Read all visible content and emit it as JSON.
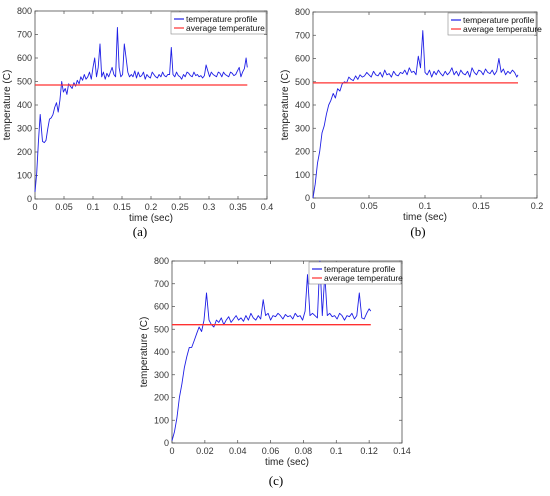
{
  "panel_labels": [
    "(a)",
    "(b)",
    "(c)"
  ],
  "colors": {
    "profile": "#1f1fe6",
    "average": "#ff3030",
    "axis": "#4d4d4d",
    "grid_bg": "#ffffff"
  },
  "chart_data": [
    {
      "type": "line",
      "panel": "(a)",
      "xlabel": "time (sec)",
      "ylabel": "temperature (C)",
      "xlim": [
        0,
        0.4
      ],
      "ylim": [
        0,
        800
      ],
      "xticks": [
        0,
        0.05,
        0.1,
        0.15,
        0.2,
        0.25,
        0.3,
        0.35,
        0.4
      ],
      "xtick_labels": [
        "0",
        "0.05",
        "0.1",
        "0.15",
        "0.2",
        "0.25",
        "0.3",
        "0.35",
        "0.4"
      ],
      "yticks": [
        0,
        100,
        200,
        300,
        400,
        500,
        600,
        700,
        800
      ],
      "ytick_labels": [
        "0",
        "100",
        "200",
        "300",
        "400",
        "500",
        "600",
        "700",
        "800"
      ],
      "legend_position": "top-right",
      "series": [
        {
          "name": "temperature profile",
          "kind": "line",
          "x": [
            0,
            0.003,
            0.006,
            0.009,
            0.011,
            0.013,
            0.016,
            0.019,
            0.022,
            0.025,
            0.028,
            0.031,
            0.034,
            0.037,
            0.04,
            0.043,
            0.046,
            0.049,
            0.052,
            0.055,
            0.058,
            0.061,
            0.064,
            0.067,
            0.07,
            0.073,
            0.076,
            0.079,
            0.082,
            0.085,
            0.088,
            0.091,
            0.094,
            0.097,
            0.1,
            0.103,
            0.106,
            0.109,
            0.112,
            0.115,
            0.118,
            0.121,
            0.124,
            0.127,
            0.13,
            0.133,
            0.136,
            0.139,
            0.142,
            0.145,
            0.148,
            0.151,
            0.154,
            0.157,
            0.16,
            0.163,
            0.166,
            0.169,
            0.172,
            0.175,
            0.178,
            0.181,
            0.184,
            0.187,
            0.19,
            0.193,
            0.196,
            0.199,
            0.202,
            0.205,
            0.208,
            0.211,
            0.214,
            0.217,
            0.22,
            0.223,
            0.226,
            0.229,
            0.232,
            0.235,
            0.238,
            0.241,
            0.244,
            0.247,
            0.25,
            0.253,
            0.256,
            0.259,
            0.262,
            0.265,
            0.268,
            0.271,
            0.274,
            0.277,
            0.28,
            0.283,
            0.286,
            0.289,
            0.292,
            0.295,
            0.298,
            0.301,
            0.304,
            0.307,
            0.31,
            0.313,
            0.316,
            0.319,
            0.322,
            0.325,
            0.328,
            0.331,
            0.334,
            0.337,
            0.34,
            0.343,
            0.346,
            0.349,
            0.352,
            0.355,
            0.358,
            0.361,
            0.364,
            0.366
          ],
          "y": [
            30,
            110,
            250,
            360,
            300,
            245,
            240,
            250,
            300,
            340,
            345,
            360,
            390,
            410,
            370,
            420,
            500,
            455,
            470,
            445,
            490,
            480,
            470,
            495,
            480,
            505,
            490,
            520,
            505,
            530,
            510,
            520,
            540,
            510,
            560,
            600,
            520,
            560,
            660,
            520,
            540,
            510,
            535,
            520,
            540,
            560,
            530,
            520,
            730,
            560,
            520,
            530,
            660,
            600,
            540,
            520,
            530,
            520,
            545,
            515,
            540,
            520,
            525,
            540,
            510,
            530,
            520,
            515,
            540,
            530,
            520,
            515,
            530,
            520,
            540,
            525,
            520,
            530,
            530,
            645,
            530,
            520,
            540,
            525,
            520,
            510,
            530,
            520,
            540,
            535,
            525,
            520,
            540,
            525,
            530,
            520,
            525,
            515,
            525,
            570,
            545,
            520,
            540,
            530,
            525,
            520,
            540,
            535,
            520,
            540,
            530,
            525,
            520,
            540,
            535,
            525,
            530,
            545,
            560,
            520,
            540,
            555,
            600,
            560
          ]
        },
        {
          "name": "average temperature",
          "kind": "hline",
          "x": [
            0,
            0.366
          ],
          "y": [
            485,
            485
          ]
        }
      ]
    },
    {
      "type": "line",
      "panel": "(b)",
      "xlabel": "time (sec)",
      "ylabel": "temperature (C)",
      "xlim": [
        0,
        0.2
      ],
      "ylim": [
        0,
        800
      ],
      "xticks": [
        0,
        0.05,
        0.1,
        0.15,
        0.2
      ],
      "xtick_labels": [
        "0",
        "0.05",
        "0.1",
        "0.15",
        "0.2"
      ],
      "yticks": [
        0,
        100,
        200,
        300,
        400,
        500,
        600,
        700,
        800
      ],
      "ytick_labels": [
        "0",
        "100",
        "200",
        "300",
        "400",
        "500",
        "600",
        "700",
        "800"
      ],
      "legend_position": "top-right",
      "series": [
        {
          "name": "temperature profile",
          "kind": "line",
          "x": [
            0,
            0.002,
            0.004,
            0.006,
            0.008,
            0.01,
            0.012,
            0.014,
            0.016,
            0.018,
            0.02,
            0.022,
            0.024,
            0.026,
            0.028,
            0.03,
            0.032,
            0.034,
            0.036,
            0.038,
            0.04,
            0.042,
            0.044,
            0.046,
            0.048,
            0.05,
            0.052,
            0.054,
            0.056,
            0.058,
            0.06,
            0.062,
            0.064,
            0.066,
            0.068,
            0.07,
            0.072,
            0.074,
            0.076,
            0.078,
            0.08,
            0.082,
            0.084,
            0.086,
            0.088,
            0.09,
            0.092,
            0.094,
            0.096,
            0.098,
            0.1,
            0.102,
            0.104,
            0.106,
            0.108,
            0.11,
            0.112,
            0.114,
            0.116,
            0.118,
            0.12,
            0.122,
            0.124,
            0.126,
            0.128,
            0.13,
            0.132,
            0.134,
            0.136,
            0.138,
            0.14,
            0.142,
            0.144,
            0.146,
            0.148,
            0.15,
            0.152,
            0.154,
            0.156,
            0.158,
            0.16,
            0.162,
            0.164,
            0.166,
            0.168,
            0.17,
            0.172,
            0.174,
            0.176,
            0.178,
            0.18,
            0.182,
            0.183
          ],
          "y": [
            0,
            60,
            150,
            200,
            280,
            310,
            360,
            400,
            420,
            450,
            430,
            470,
            460,
            490,
            500,
            495,
            520,
            510,
            505,
            525,
            510,
            530,
            520,
            525,
            540,
            530,
            520,
            545,
            530,
            525,
            540,
            520,
            550,
            530,
            535,
            520,
            545,
            530,
            525,
            540,
            535,
            550,
            530,
            560,
            540,
            545,
            530,
            610,
            560,
            720,
            540,
            530,
            550,
            520,
            545,
            530,
            550,
            535,
            525,
            545,
            530,
            540,
            560,
            530,
            545,
            525,
            550,
            535,
            530,
            545,
            520,
            560,
            540,
            530,
            550,
            545,
            530,
            555,
            540,
            535,
            550,
            530,
            545,
            600,
            540,
            555,
            530,
            545,
            535,
            550,
            540,
            520,
            530
          ],
          "dx_note_suppressed": true
        },
        {
          "name": "average temperature",
          "kind": "hline",
          "x": [
            0,
            0.183
          ],
          "y": [
            495,
            495
          ]
        }
      ]
    },
    {
      "type": "line",
      "panel": "(c)",
      "xlabel": "time (sec)",
      "ylabel": "temperature (C)",
      "xlim": [
        0,
        0.14
      ],
      "ylim": [
        0,
        800
      ],
      "xticks": [
        0,
        0.02,
        0.04,
        0.06,
        0.08,
        0.1,
        0.12,
        0.14
      ],
      "xtick_labels": [
        "0",
        "0.02",
        "0.04",
        "0.06",
        "0.08",
        "0.1",
        "0.12",
        "0.14"
      ],
      "yticks": [
        0,
        100,
        200,
        300,
        400,
        500,
        600,
        700,
        800
      ],
      "ytick_labels": [
        "0",
        "100",
        "200",
        "300",
        "400",
        "500",
        "600",
        "700",
        "800"
      ],
      "legend_position": "top-right",
      "series": [
        {
          "name": "temperature profile",
          "kind": "line",
          "x": [
            0,
            0.0015,
            0.003,
            0.0045,
            0.006,
            0.0075,
            0.009,
            0.0105,
            0.012,
            0.0135,
            0.015,
            0.0165,
            0.018,
            0.0195,
            0.021,
            0.0225,
            0.024,
            0.0255,
            0.027,
            0.0285,
            0.03,
            0.0315,
            0.033,
            0.0345,
            0.036,
            0.0375,
            0.039,
            0.0405,
            0.042,
            0.0435,
            0.045,
            0.0465,
            0.048,
            0.0495,
            0.051,
            0.0525,
            0.054,
            0.0555,
            0.057,
            0.0585,
            0.06,
            0.0615,
            0.063,
            0.0645,
            0.066,
            0.0675,
            0.069,
            0.0705,
            0.072,
            0.0735,
            0.075,
            0.0765,
            0.078,
            0.0795,
            0.081,
            0.0825,
            0.084,
            0.0855,
            0.087,
            0.0885,
            0.09,
            0.0915,
            0.093,
            0.0945,
            0.096,
            0.0975,
            0.099,
            0.1005,
            0.102,
            0.1035,
            0.105,
            0.1065,
            0.108,
            0.1095,
            0.111,
            0.1125,
            0.114,
            0.1155,
            0.117,
            0.1185,
            0.12,
            0.121
          ],
          "y": [
            10,
            50,
            110,
            200,
            260,
            330,
            380,
            420,
            420,
            450,
            480,
            510,
            490,
            540,
            660,
            540,
            520,
            510,
            540,
            530,
            550,
            520,
            540,
            555,
            530,
            545,
            560,
            540,
            550,
            535,
            560,
            540,
            570,
            550,
            540,
            560,
            545,
            630,
            560,
            570,
            540,
            560,
            555,
            570,
            560,
            545,
            565,
            555,
            560,
            545,
            570,
            555,
            560,
            540,
            580,
            740,
            560,
            570,
            560,
            550,
            800,
            560,
            740,
            560,
            570,
            555,
            560,
            545,
            570,
            560,
            540,
            560,
            555,
            570,
            545,
            560,
            660,
            550,
            545,
            570,
            590,
            580
          ]
        },
        {
          "name": "average temperature",
          "kind": "hline",
          "x": [
            0,
            0.121
          ],
          "y": [
            520,
            520
          ]
        }
      ]
    }
  ]
}
